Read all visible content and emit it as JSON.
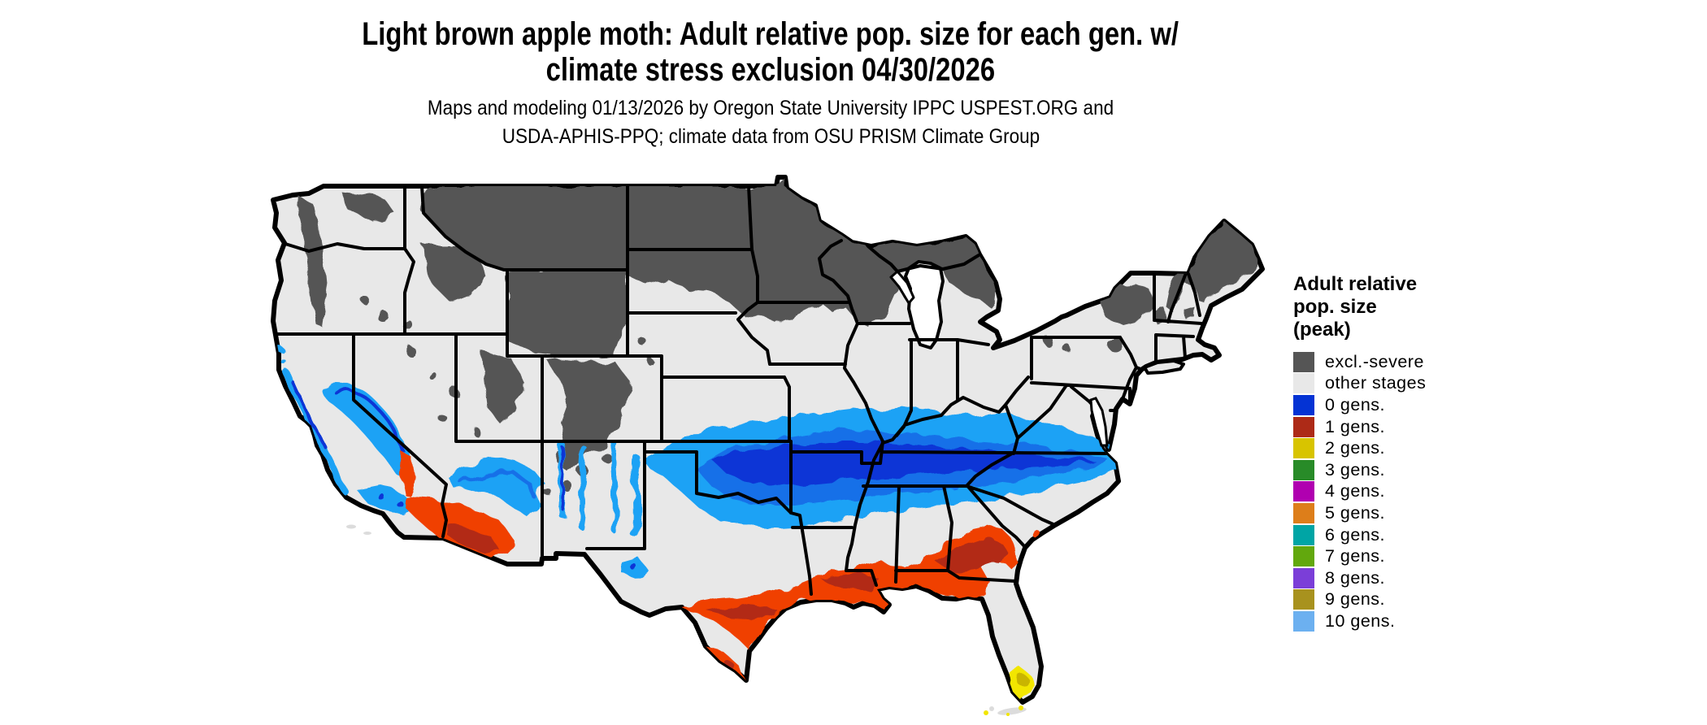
{
  "title": {
    "line1": "Light brown apple moth: Adult relative pop. size for each gen. w/",
    "line2": "climate stress exclusion 04/30/2026"
  },
  "subtitle": {
    "line1": "Maps and modeling 01/13/2026 by Oregon State University IPPC USPEST.ORG and",
    "line2": "USDA-APHIS-PPQ; climate data from OSU PRISM Climate Group"
  },
  "legend": {
    "title_line1": "Adult relative",
    "title_line2": "pop. size",
    "title_line3": "(peak)",
    "items": [
      {
        "label": "excl.-severe",
        "color": "#555555"
      },
      {
        "label": "other stages",
        "color": "#e8e8e8"
      },
      {
        "label": "0 gens.",
        "color": "#0433d4"
      },
      {
        "label": "1 gens.",
        "color": "#ad2a17"
      },
      {
        "label": "2 gens.",
        "color": "#d8c400"
      },
      {
        "label": "3 gens.",
        "color": "#288b28"
      },
      {
        "label": "4 gens.",
        "color": "#b000b0"
      },
      {
        "label": "5 gens.",
        "color": "#dd7e1a"
      },
      {
        "label": "6 gens.",
        "color": "#00a5a5"
      },
      {
        "label": "7 gens.",
        "color": "#62a80d"
      },
      {
        "label": "8 gens.",
        "color": "#7b3ed8"
      },
      {
        "label": "9 gens.",
        "color": "#a8921e"
      },
      {
        "label": "10 gens.",
        "color": "#6cb0f0"
      }
    ]
  },
  "palette": {
    "base": "#e8e8e8",
    "excluded": "#555555",
    "cyan": "#1fa2f5",
    "blueMid": "#1470e8",
    "blueDark": "#0a36d6",
    "redBright": "#f04000",
    "redDark": "#b22a14",
    "yellow": "#f2e600",
    "yellowDark": "#c9b500",
    "island": "#dcdcdc",
    "border": "#000000",
    "water": "#ffffff"
  },
  "map": {
    "kind": "choropleth-raster of contiguous United States",
    "regions": [
      {
        "name": "northern-excluded-band",
        "classes": "excl.-severe",
        "where": "ND, MN, WI, upper MI, northern SD, eastern MT, Rockies (ID/WY/UT/CO), Adirondacks, northern New England, Maine"
      },
      {
        "name": "other-stages-base",
        "classes": "other stages",
        "where": "most of CONUS interior"
      },
      {
        "name": "zero-generation-band",
        "classes": "0 gens.",
        "where": "central band from KS/OK through MO, KY, TN into VA/NC; CA coast and Sierra foothills; AZ Mogollon Rim; NM mountain ribbons"
      },
      {
        "name": "one-generation-gulf-band",
        "classes": "1 gens.",
        "where": "Gulf Coast from south TX through LA, MS, AL, FL panhandle and south GA; southern AZ low desert"
      },
      {
        "name": "two-generation-area",
        "classes": "2 gens.",
        "where": "southern tip of Florida and Keys"
      }
    ]
  }
}
